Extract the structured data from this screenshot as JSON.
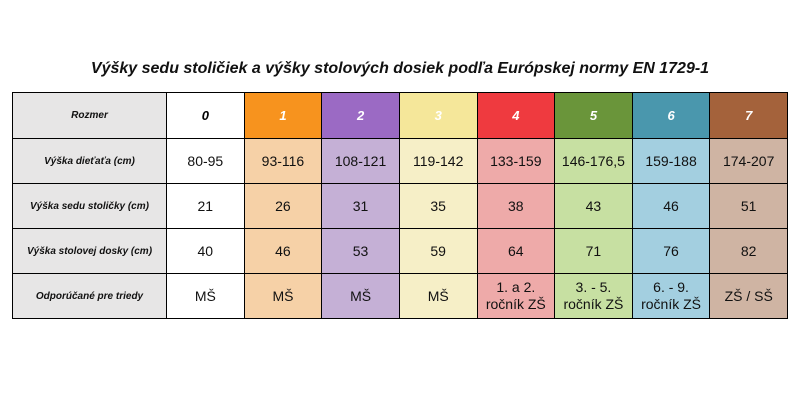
{
  "title": "Výšky sedu stoličiek a výšky stolových dosiek podľa Európskej normy EN 1729-1",
  "sizes": [
    {
      "label": "0",
      "header_color": "#ffffff",
      "cell_color": "#ffffff"
    },
    {
      "label": "1",
      "header_color": "#f7931e",
      "cell_color": "#f6d1a7"
    },
    {
      "label": "2",
      "header_color": "#9b6ac4",
      "cell_color": "#c5b0d6"
    },
    {
      "label": "3",
      "header_color": "#f5e79a",
      "cell_color": "#f6efc7"
    },
    {
      "label": "4",
      "header_color": "#ef3a3f",
      "cell_color": "#eeaaa9"
    },
    {
      "label": "5",
      "header_color": "#6a953a",
      "cell_color": "#c7e0a2"
    },
    {
      "label": "6",
      "header_color": "#4a97ad",
      "cell_color": "#a3cfe0"
    },
    {
      "label": "7",
      "header_color": "#a4623b",
      "cell_color": "#cfb4a3"
    }
  ],
  "table": {
    "header_label": "Rozmer",
    "rows": [
      {
        "label": "Výška dieťaťa (cm)",
        "values": [
          "80-95",
          "93-116",
          "108-121",
          "119-142",
          "133-159",
          "146-176,5",
          "159-188",
          "174-207"
        ]
      },
      {
        "label": "Výška sedu stoličky (cm)",
        "values": [
          "21",
          "26",
          "31",
          "35",
          "38",
          "43",
          "46",
          "51"
        ]
      },
      {
        "label": "Výška stolovej dosky (cm)",
        "values": [
          "40",
          "46",
          "53",
          "59",
          "64",
          "71",
          "76",
          "82"
        ]
      },
      {
        "label": "Odporúčané pre triedy",
        "values": [
          "MŠ",
          "MŠ",
          "MŠ",
          "MŠ",
          "1. a 2. ročník ZŠ",
          "3. - 5. ročník ZŠ",
          "6. - 9. ročník ZŠ",
          "ZŠ / SŠ"
        ]
      }
    ]
  },
  "colors": {
    "label_background": "#e7e6e6",
    "border": "#000000"
  }
}
